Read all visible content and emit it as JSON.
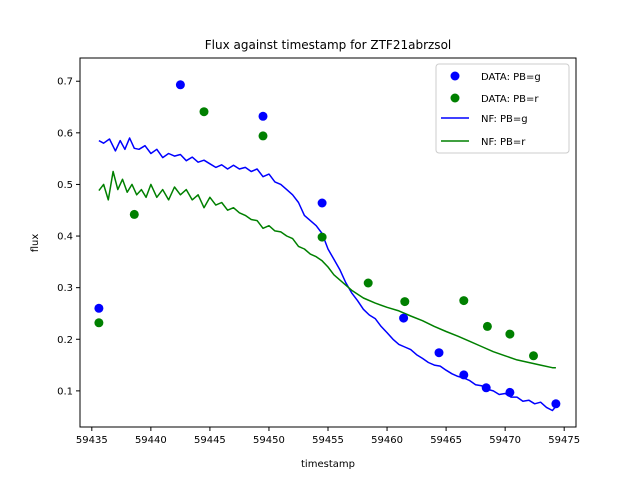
{
  "chart_data": {
    "type": "scatter",
    "title": "Flux against timestamp for ZTF21abrzsol",
    "xlabel": "timestamp",
    "ylabel": "flux",
    "xlim": [
      59434.0,
      59476.0
    ],
    "ylim": [
      0.03,
      0.745
    ],
    "xticks": [
      59435,
      59440,
      59445,
      59450,
      59455,
      59460,
      59465,
      59470,
      59475
    ],
    "yticks": [
      0.1,
      0.2,
      0.3,
      0.4,
      0.5,
      0.6,
      0.7
    ],
    "grid": false,
    "legend_position": "top-right",
    "colors": {
      "g": "#0000ff",
      "r": "#008000"
    },
    "series": [
      {
        "name": "DATA: PB=g",
        "kind": "points",
        "color": "#0000ff",
        "x": [
          59435.6,
          59442.5,
          59449.5,
          59454.5,
          59461.4,
          59464.4,
          59466.5,
          59468.4,
          59470.4,
          59474.3
        ],
        "y": [
          0.26,
          0.693,
          0.632,
          0.464,
          0.241,
          0.174,
          0.131,
          0.106,
          0.097,
          0.075
        ]
      },
      {
        "name": "DATA: PB=r",
        "kind": "points",
        "color": "#008000",
        "x": [
          59435.6,
          59438.6,
          59444.5,
          59449.5,
          59454.5,
          59458.4,
          59461.5,
          59466.5,
          59468.5,
          59470.4,
          59472.4
        ],
        "y": [
          0.232,
          0.442,
          0.641,
          0.594,
          0.398,
          0.309,
          0.273,
          0.275,
          0.225,
          0.21,
          0.168
        ]
      },
      {
        "name": "NF: PB=g",
        "kind": "line",
        "color": "#0000ff",
        "x": [
          59435.6,
          59436.0,
          59436.5,
          59437.0,
          59437.4,
          59437.8,
          59438.2,
          59438.6,
          59439.0,
          59439.5,
          59440.0,
          59440.5,
          59441.0,
          59441.5,
          59442.0,
          59442.5,
          59443.0,
          59443.5,
          59444.0,
          59444.5,
          59445.0,
          59445.5,
          59446.0,
          59446.5,
          59447.0,
          59447.5,
          59448.0,
          59448.5,
          59449.0,
          59449.5,
          59450.0,
          59450.5,
          59451.0,
          59451.5,
          59452.0,
          59452.5,
          59453.0,
          59453.5,
          59454.0,
          59454.5,
          59455.0,
          59455.5,
          59456.0,
          59456.5,
          59457.0,
          59457.5,
          59458.0,
          59458.5,
          59459.0,
          59459.5,
          59460.0,
          59460.5,
          59461.0,
          59461.5,
          59462.0,
          59462.5,
          59463.0,
          59463.5,
          59464.0,
          59464.5,
          59465.0,
          59465.5,
          59466.0,
          59466.5,
          59467.0,
          59467.5,
          59468.0,
          59468.5,
          59469.0,
          59469.5,
          59470.0,
          59470.5,
          59471.0,
          59471.5,
          59472.0,
          59472.5,
          59473.0,
          59473.5,
          59474.0,
          59474.3
        ],
        "y": [
          0.585,
          0.58,
          0.588,
          0.565,
          0.585,
          0.568,
          0.59,
          0.57,
          0.568,
          0.575,
          0.56,
          0.568,
          0.552,
          0.56,
          0.555,
          0.558,
          0.546,
          0.553,
          0.543,
          0.547,
          0.54,
          0.533,
          0.538,
          0.53,
          0.537,
          0.53,
          0.533,
          0.525,
          0.53,
          0.515,
          0.52,
          0.505,
          0.5,
          0.49,
          0.48,
          0.465,
          0.44,
          0.43,
          0.42,
          0.405,
          0.375,
          0.355,
          0.335,
          0.31,
          0.29,
          0.275,
          0.258,
          0.247,
          0.24,
          0.225,
          0.213,
          0.2,
          0.19,
          0.185,
          0.18,
          0.17,
          0.163,
          0.155,
          0.15,
          0.148,
          0.14,
          0.133,
          0.128,
          0.125,
          0.12,
          0.112,
          0.11,
          0.103,
          0.1,
          0.093,
          0.095,
          0.088,
          0.088,
          0.08,
          0.082,
          0.075,
          0.078,
          0.068,
          0.062,
          0.07
        ]
      },
      {
        "name": "NF: PB=r",
        "kind": "line",
        "color": "#008000",
        "x": [
          59435.6,
          59436.0,
          59436.4,
          59436.8,
          59437.2,
          59437.6,
          59438.0,
          59438.4,
          59438.8,
          59439.2,
          59439.6,
          59440.0,
          59440.5,
          59441.0,
          59441.5,
          59442.0,
          59442.5,
          59443.0,
          59443.5,
          59444.0,
          59444.5,
          59445.0,
          59445.5,
          59446.0,
          59446.5,
          59447.0,
          59447.5,
          59448.0,
          59448.5,
          59449.0,
          59449.5,
          59450.0,
          59450.5,
          59451.0,
          59451.5,
          59452.0,
          59452.5,
          59453.0,
          59453.5,
          59454.0,
          59454.5,
          59455.0,
          59455.5,
          59456.0,
          59456.5,
          59457.0,
          59458.0,
          59459.0,
          59460.0,
          59461.0,
          59462.0,
          59463.0,
          59464.0,
          59465.0,
          59466.0,
          59467.0,
          59468.0,
          59469.0,
          59470.0,
          59471.0,
          59472.0,
          59473.0,
          59474.0,
          59474.3
        ],
        "y": [
          0.488,
          0.5,
          0.47,
          0.525,
          0.49,
          0.51,
          0.485,
          0.5,
          0.48,
          0.49,
          0.475,
          0.5,
          0.475,
          0.49,
          0.47,
          0.495,
          0.48,
          0.49,
          0.47,
          0.48,
          0.455,
          0.475,
          0.46,
          0.465,
          0.45,
          0.455,
          0.445,
          0.44,
          0.432,
          0.43,
          0.415,
          0.42,
          0.41,
          0.408,
          0.4,
          0.395,
          0.38,
          0.375,
          0.365,
          0.36,
          0.352,
          0.34,
          0.325,
          0.315,
          0.305,
          0.295,
          0.28,
          0.27,
          0.262,
          0.255,
          0.245,
          0.236,
          0.225,
          0.215,
          0.206,
          0.196,
          0.186,
          0.176,
          0.168,
          0.16,
          0.155,
          0.15,
          0.145,
          0.145
        ]
      }
    ]
  }
}
